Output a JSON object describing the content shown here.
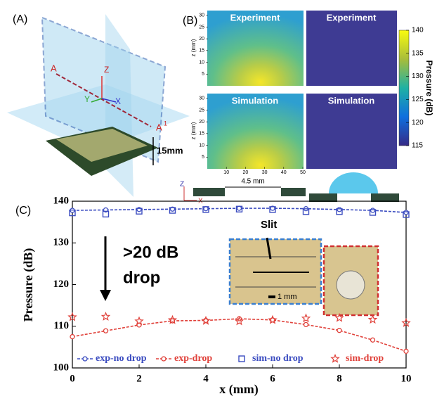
{
  "panels": {
    "A": {
      "label": "(A)",
      "texts": [
        "A",
        "Z",
        "Y",
        "X",
        "A",
        "15mm"
      ],
      "prime": "1"
    },
    "B": {
      "label": "(B)",
      "titles": [
        "Experiment",
        "Experiment",
        "Simulation",
        "Simulation"
      ],
      "z_label": "z (mm)",
      "z_ticks": [
        5,
        10,
        15,
        20,
        25,
        30
      ],
      "x_ticks": [
        10,
        20,
        30,
        40,
        50
      ],
      "colorbar_label": "Pressure (dB)",
      "colorbar_lim": [
        115,
        140
      ],
      "colorbar_ticks": [
        115,
        120,
        125,
        130,
        135,
        140
      ],
      "gap_label": "4.5 mm",
      "axis_z": "Z",
      "axis_x": "X"
    }
  },
  "chart_data": {
    "type": "line",
    "panel_label": "(C)",
    "x_label": "x (mm)",
    "y_label": "Pressure (dB)",
    "x": [
      0,
      1,
      2,
      3,
      4,
      5,
      6,
      7,
      8,
      9,
      10
    ],
    "xlim": [
      0,
      10
    ],
    "xticks": [
      0,
      2,
      4,
      6,
      8,
      10
    ],
    "ylim": [
      100,
      140
    ],
    "yticks": [
      100,
      110,
      120,
      130,
      140
    ],
    "series": [
      {
        "name": "exp-no drop",
        "color": "#3b4cc0",
        "marker": "circle",
        "line": true,
        "values": [
          137.8,
          137.9,
          138.0,
          138.1,
          138.2,
          138.3,
          138.3,
          138.2,
          138.0,
          137.8,
          137.3
        ]
      },
      {
        "name": "exp-drop",
        "color": "#e0413a",
        "marker": "circle",
        "line": true,
        "values": [
          107.5,
          108.9,
          110.3,
          111.3,
          111.4,
          111.8,
          111.5,
          110.4,
          109.0,
          106.7,
          104.0
        ]
      },
      {
        "name": "sim-no drop",
        "color": "#3b4cc0",
        "marker": "square",
        "line": false,
        "values": [
          137.2,
          136.9,
          137.6,
          137.8,
          138.0,
          138.1,
          138.0,
          137.5,
          137.5,
          137.3,
          136.8
        ]
      },
      {
        "name": "sim-drop",
        "color": "#e0413a",
        "marker": "star",
        "line": false,
        "values": [
          112.2,
          112.3,
          111.2,
          111.5,
          111.3,
          111.2,
          111.5,
          111.9,
          112.0,
          111.6,
          110.8
        ]
      }
    ],
    "annotations": [
      ">20 dB",
      "drop",
      "Slit",
      "1 mm"
    ]
  }
}
